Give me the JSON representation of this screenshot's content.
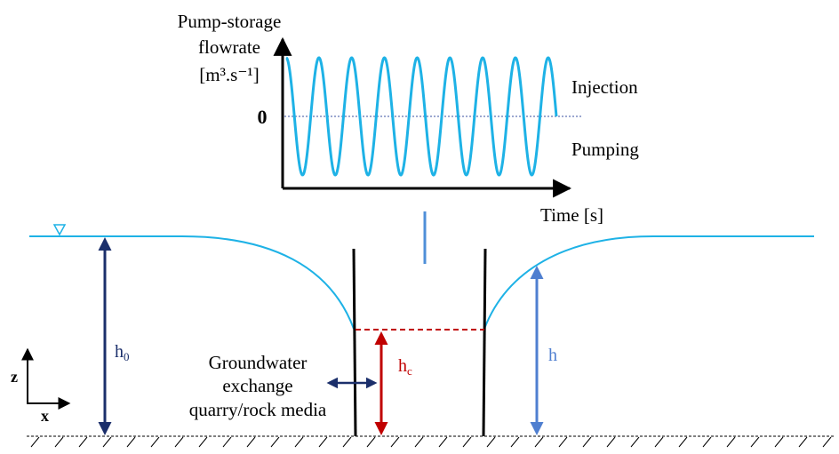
{
  "chart": {
    "ylabel_line1": "Pump-storage",
    "ylabel_line2": "flowrate",
    "ylabel_line3": "[m³.s⁻¹]",
    "zero_label": "0",
    "upper_label": "Injection",
    "lower_label": "Pumping",
    "xlabel": "Time [s]"
  },
  "chart_data": {
    "type": "line",
    "title": "",
    "xlabel": "Time [s]",
    "ylabel": "Pump-storage flowrate [m³.s⁻¹]",
    "description_ticks": [
      "0"
    ],
    "series": [
      {
        "name": "",
        "cycles": 8.25,
        "amplitude": 1,
        "shape": "sinusoid"
      }
    ],
    "annotations": [
      "Injection",
      "Pumping"
    ]
  },
  "diagram": {
    "label_h0": "h",
    "label_h0_sub": "0",
    "label_hc": "h",
    "label_hc_sub": "c",
    "label_h": "h",
    "axis_z": "z",
    "axis_x": "x",
    "exchange_line1": "Groundwater",
    "exchange_line2": "exchange",
    "exchange_line3": "quarry/rock media"
  },
  "colors": {
    "water": "#1eb2e6",
    "navy": "#1b2f6b",
    "red": "#c00000",
    "blue_arrow": "#4f7fd0",
    "black": "#000000"
  }
}
